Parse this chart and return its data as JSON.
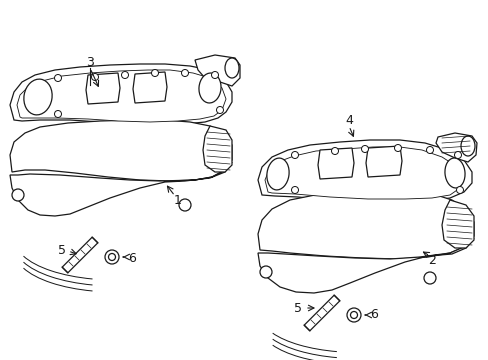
{
  "bg_color": "#ffffff",
  "line_color": "#1a1a1a",
  "lw": 0.9,
  "figsize": [
    4.89,
    3.6
  ],
  "dpi": 100,
  "label_fs": 9
}
